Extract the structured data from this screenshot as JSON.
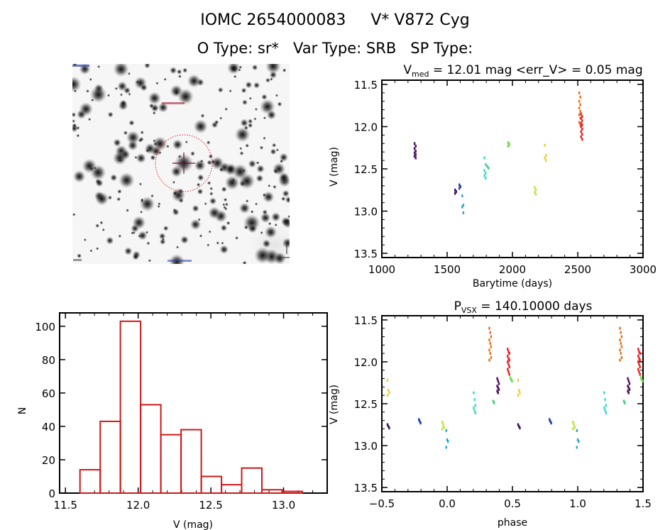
{
  "header": {
    "object_id": "IOMC 2654000083",
    "object_name": "V* V872 Cyg",
    "o_type_label": "O Type: sr*",
    "var_type_label": "Var Type: SRB",
    "sp_type_label": "SP Type:"
  },
  "finder": {
    "description": "finder chart image (inverted star field)",
    "target_marker": "crosshair-with-circle",
    "colors": {
      "circle": "#cc2222",
      "crosshair": "#6a1040",
      "labels": "#3344aa"
    }
  },
  "chart_data": [
    {
      "id": "lightcurve",
      "type": "scatter",
      "title_main": "V",
      "title_sub": "med",
      "title_rest": " = 12.01 mag <err_V> = 0.05 mag",
      "xlabel": "Barytime (days)",
      "ylabel": "V (mag)",
      "xlim": [
        1000,
        3000
      ],
      "ylim": [
        13.55,
        11.45
      ],
      "yreversed": true,
      "xticks": [
        1000,
        1500,
        2000,
        2500,
        3000
      ],
      "xtick_labels": [
        "1000",
        "1500",
        "2000",
        "2500",
        "3000"
      ],
      "yticks": [
        11.5,
        12.0,
        12.5,
        13.0,
        13.5
      ],
      "ytick_labels": [
        "11.5",
        "12.0",
        "12.5",
        "13.0",
        "13.5"
      ],
      "series": [
        {
          "name": "season-1",
          "color": "#4b0f5e",
          "t": 1255,
          "phase": 0.39,
          "mags": [
            12.2,
            12.23,
            12.26,
            12.29,
            12.31,
            12.33,
            12.35,
            12.37
          ]
        },
        {
          "name": "season-2",
          "color": "#3a1060",
          "t": 1565,
          "phase": 0.55,
          "mags": [
            12.75,
            12.77,
            12.79
          ]
        },
        {
          "name": "season-3",
          "color": "#1f3fa0",
          "t": 1598,
          "phase": 0.79,
          "mags": [
            12.69,
            12.71,
            12.73
          ]
        },
        {
          "name": "season-4",
          "color": "#2aa6d0",
          "t": 1620,
          "phase": 0.0,
          "mags": [
            12.82,
            12.93,
            12.95,
            13.02
          ]
        },
        {
          "name": "season-5",
          "color": "#33dccc",
          "t": 1790,
          "phase": 0.21,
          "mags": [
            12.37,
            12.45,
            12.52,
            12.55,
            12.58,
            12.61
          ]
        },
        {
          "name": "season-6",
          "color": "#3ad07a",
          "t": 1812,
          "phase": 0.36,
          "mags": [
            12.47,
            12.49
          ]
        },
        {
          "name": "season-7",
          "color": "#66dd44",
          "t": 1972,
          "phase": 0.49,
          "mags": [
            12.19,
            12.21,
            12.23
          ]
        },
        {
          "name": "season-8",
          "color": "#bde43a",
          "t": 2175,
          "phase": 0.97,
          "mags": [
            12.72,
            12.75,
            12.78,
            12.8
          ]
        },
        {
          "name": "season-9",
          "color": "#f0cc30",
          "t": 2252,
          "phase": 0.55,
          "mags": [
            12.22,
            12.34,
            12.37,
            12.4
          ]
        },
        {
          "name": "season-10",
          "color": "#e87020",
          "t": 2516,
          "phase": 0.33,
          "mags": [
            11.6,
            11.65,
            11.7,
            11.74,
            11.78,
            11.82,
            11.86,
            11.9,
            11.95,
            11.98
          ]
        },
        {
          "name": "season-11",
          "color": "#ee1c1c",
          "t": 2530,
          "phase": 0.47,
          "mags": [
            11.85,
            11.88,
            11.9,
            11.93,
            11.96,
            11.98,
            12.0,
            12.03,
            12.06,
            12.09,
            12.12,
            12.15
          ]
        }
      ]
    },
    {
      "id": "histogram",
      "type": "bar",
      "title": "",
      "xlabel": "V (mag)",
      "ylabel": "N",
      "xlim": [
        11.46,
        13.3
      ],
      "ylim": [
        0,
        108
      ],
      "xticks": [
        11.5,
        12.0,
        12.5,
        13.0
      ],
      "xtick_labels": [
        "11.5",
        "12.0",
        "12.5",
        "13.0"
      ],
      "yticks": [
        0,
        20,
        40,
        60,
        80,
        100
      ],
      "ytick_labels": [
        "0",
        "20",
        "40",
        "60",
        "80",
        "100"
      ],
      "bin_start": 11.6,
      "bin_width": 0.139,
      "values": [
        14,
        43,
        103,
        53,
        35,
        38,
        10,
        5,
        15,
        2,
        1
      ],
      "bar_color": "#cc1a1a"
    },
    {
      "id": "phased",
      "type": "scatter",
      "title_main": "P",
      "title_sub": "VSX",
      "title_rest": " = 140.10000 days",
      "period_days": 140.1,
      "xlabel": "phase",
      "ylabel": "V (mag)",
      "xlim": [
        -0.5,
        1.5
      ],
      "ylim": [
        13.55,
        11.45
      ],
      "yreversed": true,
      "xticks": [
        -0.5,
        0.0,
        0.5,
        1.0,
        1.5
      ],
      "xtick_labels": [
        "−0.5",
        "0.0",
        "0.5",
        "1.0",
        "1.5"
      ],
      "yticks": [
        11.5,
        12.0,
        12.5,
        13.0,
        13.5
      ],
      "ytick_labels": [
        "11.5",
        "12.0",
        "12.5",
        "13.0",
        "13.5"
      ],
      "uses_series_from": "lightcurve"
    }
  ]
}
